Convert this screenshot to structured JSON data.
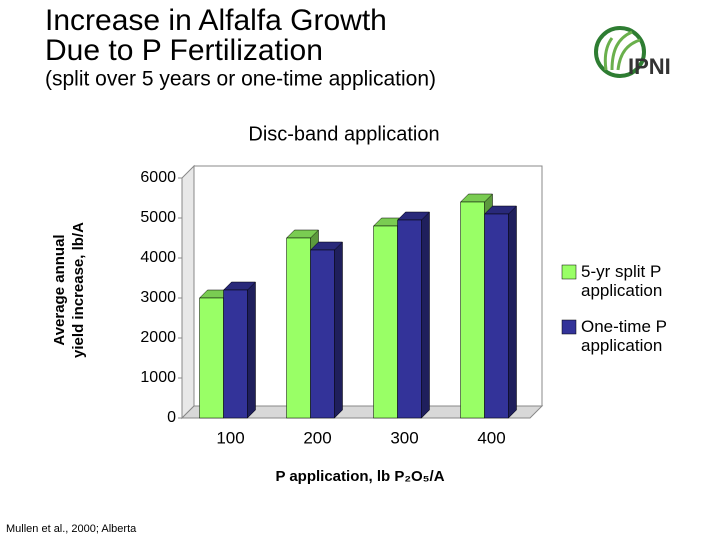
{
  "header": {
    "title_lines": [
      "Increase in Alfalfa Growth",
      "Due to P Fertilization"
    ],
    "subtitle": "(split over 5 years or one-time application)"
  },
  "logo_text": "IPNI",
  "footnote": "Mullen et al., 2000; Alberta",
  "chart_data": {
    "type": "bar",
    "title": "Disc-band application",
    "x_label": "P application, lb P₂O₅/A",
    "y_label_lines": [
      "Average annual",
      "yield increase, lb/A"
    ],
    "categories": [
      "100",
      "200",
      "300",
      "400"
    ],
    "series": [
      {
        "name": "5-yr split P application",
        "color": "#99ff66",
        "values": [
          3000,
          4500,
          4800,
          5400
        ]
      },
      {
        "name": "One-time P application",
        "color": "#333399",
        "values": [
          3200,
          4200,
          4950,
          5100
        ]
      }
    ],
    "ylim": [
      0,
      6000
    ],
    "yticks": [
      0,
      1000,
      2000,
      3000,
      4000,
      5000,
      6000
    ],
    "grid": false,
    "legend": "right"
  }
}
